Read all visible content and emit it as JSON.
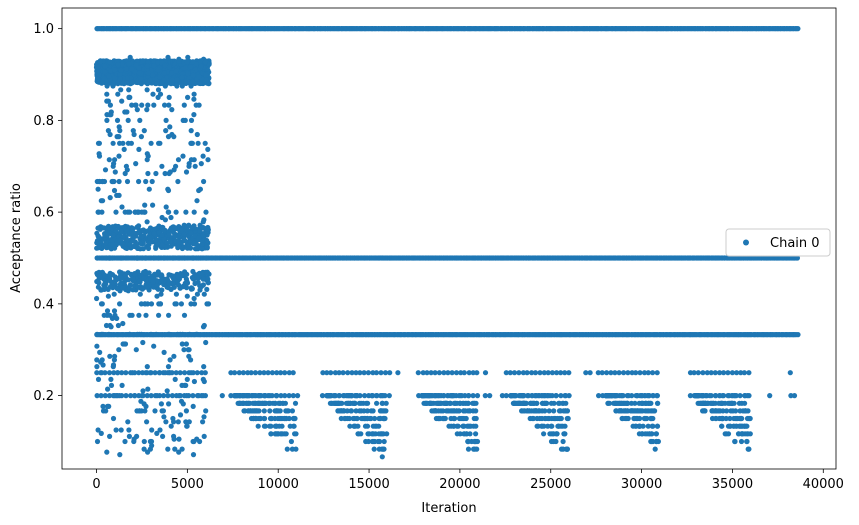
{
  "chart_data": {
    "type": "scatter",
    "title": "",
    "xlabel": "Iteration",
    "ylabel": "Acceptance ratio",
    "xlim": [
      -1900,
      40700
    ],
    "ylim": [
      0.04,
      1.045
    ],
    "xticks": [
      0,
      5000,
      10000,
      15000,
      20000,
      25000,
      30000,
      35000,
      40000
    ],
    "xtick_labels": [
      "0",
      "5000",
      "10000",
      "15000",
      "20000",
      "25000",
      "30000",
      "35000",
      "40000"
    ],
    "yticks": [
      0.2,
      0.4,
      0.6,
      0.8,
      1.0
    ],
    "ytick_labels": [
      "0.2",
      "0.4",
      "0.6",
      "0.8",
      "1.0"
    ],
    "grid": false,
    "legend_position": "center-right",
    "marker_color": "#1f77b4",
    "series": [
      {
        "name": "Chain 0",
        "bands": [
          {
            "y": 1.0,
            "x_start": 0,
            "x_end": 38600,
            "density": "dense"
          },
          {
            "y": 0.5,
            "x_start": 0,
            "x_end": 38600,
            "density": "dense"
          },
          {
            "y": 0.333,
            "x_start": 0,
            "x_end": 38600,
            "density": "dense"
          },
          {
            "y": 0.25,
            "x_start": 0,
            "x_end": 38600,
            "density": "medium"
          },
          {
            "y": 0.2,
            "x_start": 0,
            "x_end": 38600,
            "density": "medium"
          }
        ],
        "early_region": {
          "x_start": 0,
          "x_end": 6200,
          "y_min": 0.07,
          "y_max": 0.94
        },
        "dips": [
          {
            "x_start": 7600,
            "x_end": 11000,
            "y_min": 0.065
          },
          {
            "x_start": 12700,
            "x_end": 16000,
            "y_min": 0.06
          },
          {
            "x_start": 17900,
            "x_end": 21000,
            "y_min": 0.07
          },
          {
            "x_start": 22800,
            "x_end": 26000,
            "y_min": 0.07
          },
          {
            "x_start": 28000,
            "x_end": 31000,
            "y_min": 0.075
          },
          {
            "x_start": 32900,
            "x_end": 36000,
            "y_min": 0.075
          }
        ]
      }
    ]
  }
}
